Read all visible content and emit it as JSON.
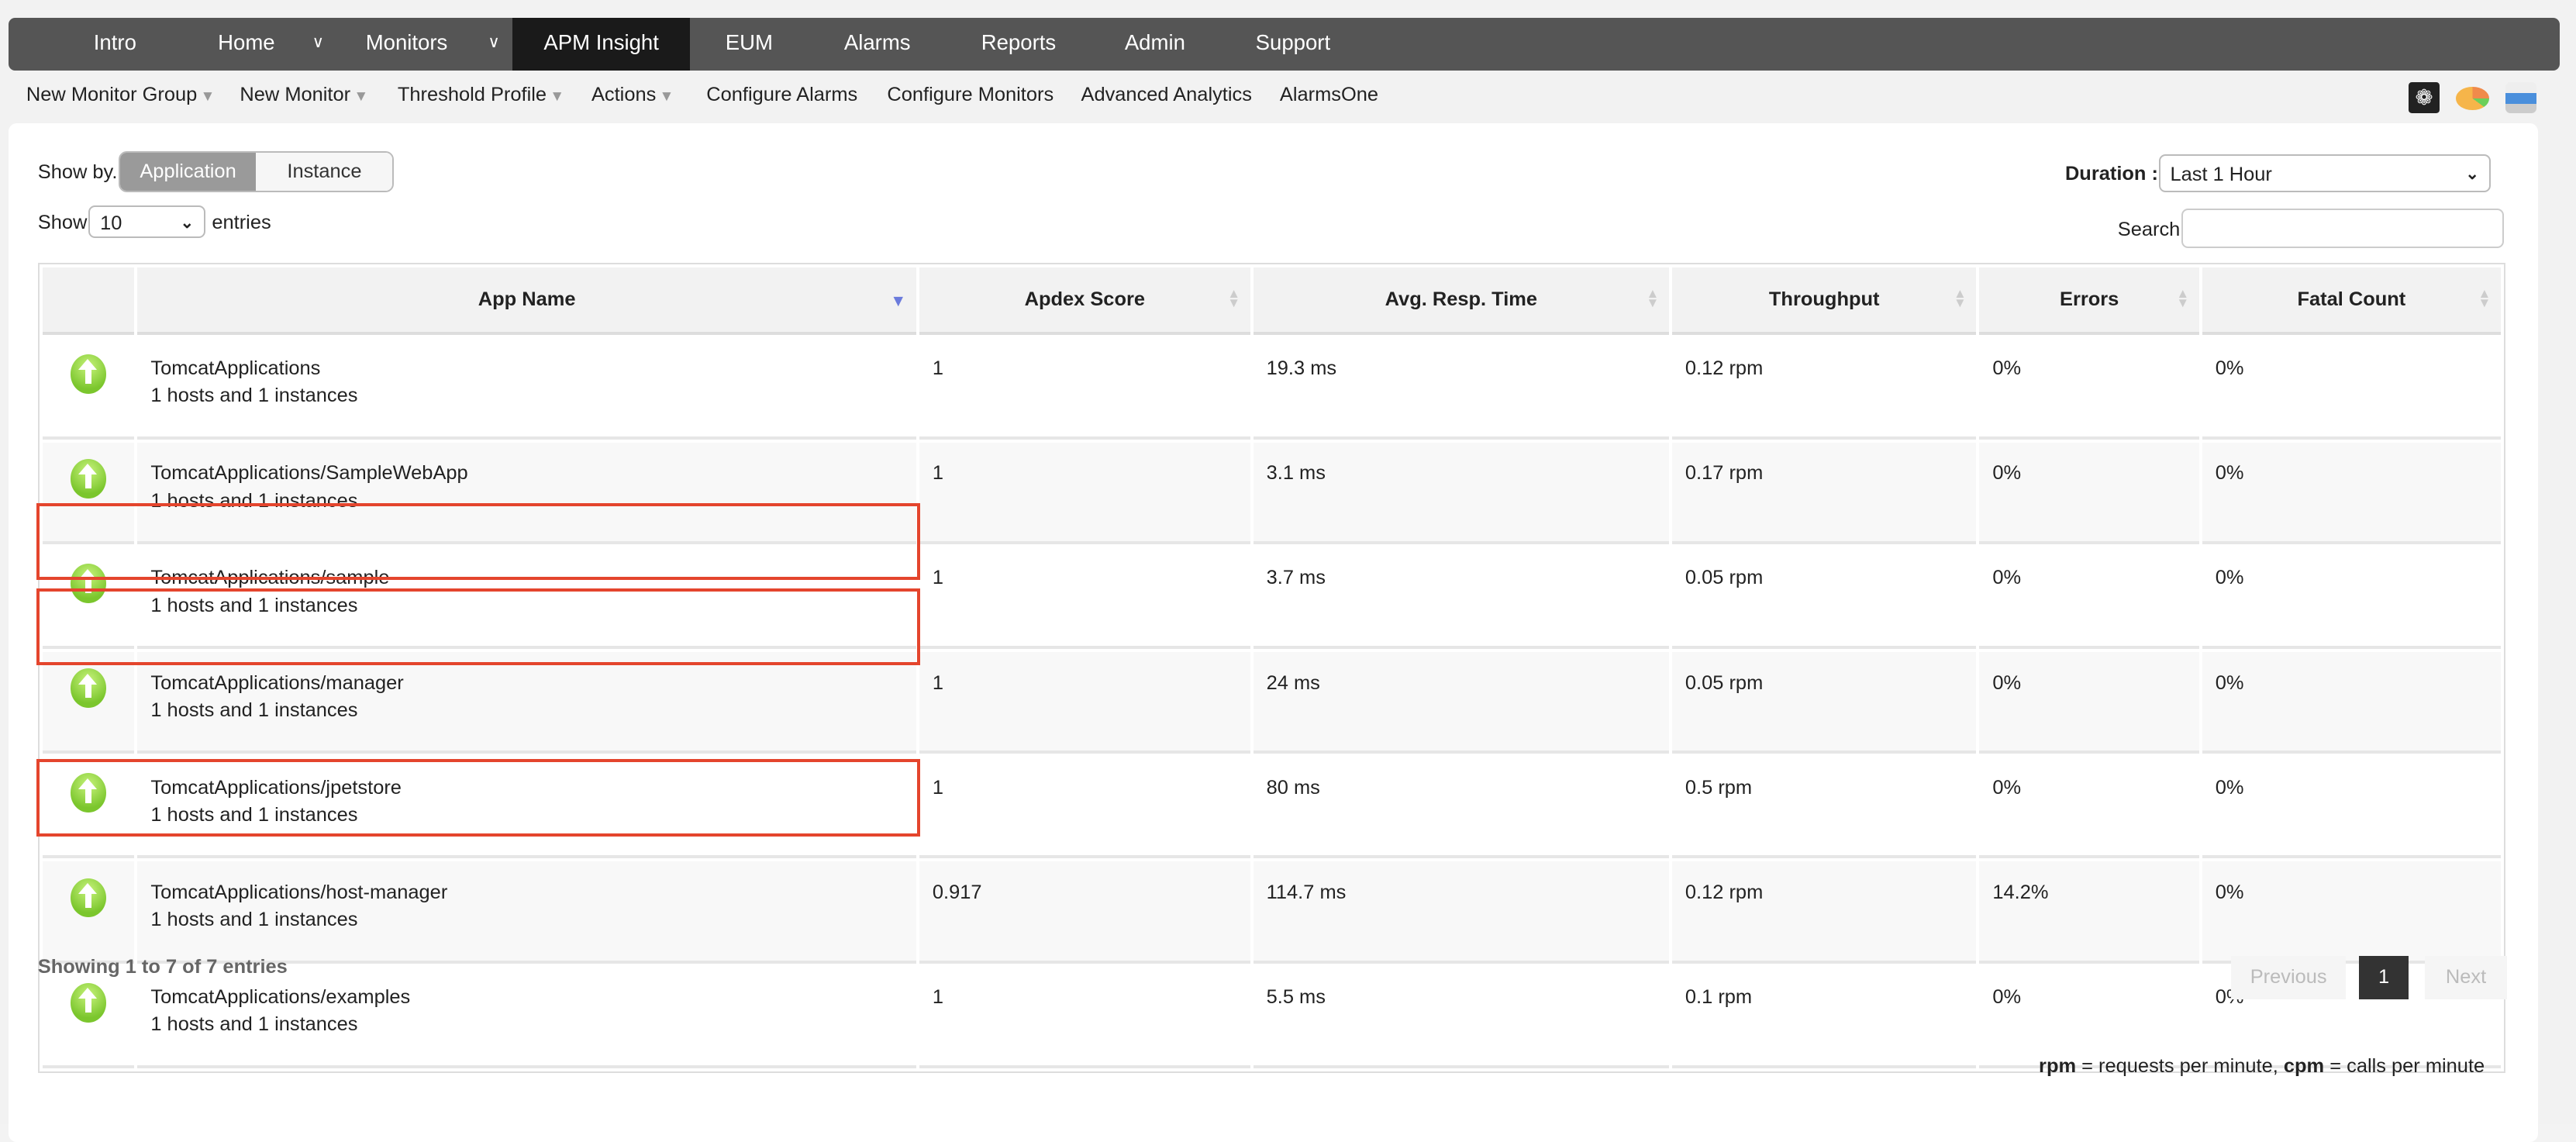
{
  "nav": {
    "items": [
      {
        "label": "Intro"
      },
      {
        "label": "Home",
        "dropdown": true
      },
      {
        "label": "Monitors",
        "dropdown": true
      },
      {
        "label": "APM Insight",
        "active": true
      },
      {
        "label": "EUM"
      },
      {
        "label": "Alarms"
      },
      {
        "label": "Reports"
      },
      {
        "label": "Admin"
      },
      {
        "label": "Support"
      }
    ]
  },
  "subnav": {
    "items": [
      {
        "label": "New Monitor Group",
        "dropdown": true
      },
      {
        "label": "New Monitor",
        "dropdown": true
      },
      {
        "label": "Threshold Profile",
        "dropdown": true
      },
      {
        "label": "Actions",
        "dropdown": true
      },
      {
        "label": "Configure Alarms"
      },
      {
        "label": "Configure Monitors"
      },
      {
        "label": "Advanced Analytics"
      },
      {
        "label": "AlarmsOne"
      }
    ]
  },
  "tools": {
    "icons": [
      "camera-shutter-icon",
      "pie-chart-icon",
      "printer-icon"
    ]
  },
  "controls": {
    "show_by_label": "Show by.",
    "show_by_options": [
      "Application",
      "Instance"
    ],
    "show_by_selected": "Application",
    "show_label": "Show",
    "show_value": "10",
    "entries_label": "entries",
    "duration_label": "Duration :",
    "duration_value": "Last 1 Hour",
    "search_label": "Search:",
    "search_value": ""
  },
  "table": {
    "columns": [
      "",
      "App Name",
      "Apdex Score",
      "Avg. Resp. Time",
      "Throughput",
      "Errors",
      "Fatal Count"
    ],
    "sorted_column": "App Name",
    "sort_direction": "descending",
    "rows": [
      {
        "status": "up",
        "name": "TomcatApplications",
        "hosts": "1 hosts and 1 instances",
        "apdex": "1",
        "resp": "19.3 ms",
        "throughput": "0.12 rpm",
        "errors": "0%",
        "fatal": "0%",
        "highlighted": false
      },
      {
        "status": "up",
        "name": "TomcatApplications/SampleWebApp",
        "hosts": "1 hosts and 1 instances",
        "apdex": "1",
        "resp": "3.1 ms",
        "throughput": "0.17 rpm",
        "errors": "0%",
        "fatal": "0%",
        "highlighted": true
      },
      {
        "status": "up",
        "name": "TomcatApplications/sample",
        "hosts": "1 hosts and 1 instances",
        "apdex": "1",
        "resp": "3.7 ms",
        "throughput": "0.05 rpm",
        "errors": "0%",
        "fatal": "0%",
        "highlighted": true
      },
      {
        "status": "up",
        "name": "TomcatApplications/manager",
        "hosts": "1 hosts and 1 instances",
        "apdex": "1",
        "resp": "24 ms",
        "throughput": "0.05 rpm",
        "errors": "0%",
        "fatal": "0%",
        "highlighted": false
      },
      {
        "status": "up",
        "name": "TomcatApplications/jpetstore",
        "hosts": "1 hosts and 1 instances",
        "apdex": "1",
        "resp": "80 ms",
        "throughput": "0.5 rpm",
        "errors": "0%",
        "fatal": "0%",
        "highlighted": true
      },
      {
        "status": "up",
        "name": "TomcatApplications/host-manager",
        "hosts": "1 hosts and 1 instances",
        "apdex": "0.917",
        "resp": "114.7 ms",
        "throughput": "0.12 rpm",
        "errors": "14.2%",
        "fatal": "0%",
        "highlighted": false
      },
      {
        "status": "up",
        "name": "TomcatApplications/examples",
        "hosts": "1 hosts and 1 instances",
        "apdex": "1",
        "resp": "5.5 ms",
        "throughput": "0.1 rpm",
        "errors": "0%",
        "fatal": "0%",
        "highlighted": false
      }
    ]
  },
  "footer": {
    "info": "Showing 1 to 7 of 7 entries",
    "previous": "Previous",
    "current_page": "1",
    "next": "Next",
    "legend_rpm": "rpm",
    "legend_rpm_text": " = requests per minute, ",
    "legend_cpm": "cpm",
    "legend_cpm_text": " = calls per minute"
  },
  "colors": {
    "nav_bg": "#555555",
    "nav_active": "#1a1a1a",
    "highlight": "#e4452d",
    "status_up": "#7bc62d"
  }
}
